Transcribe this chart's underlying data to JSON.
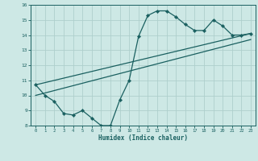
{
  "bg_color": "#cde8e5",
  "grid_color": "#aecfcc",
  "line_color": "#1a6060",
  "xlabel": "Humidex (Indice chaleur)",
  "xlim": [
    -0.5,
    23.5
  ],
  "ylim": [
    8,
    16
  ],
  "xticks": [
    0,
    1,
    2,
    3,
    4,
    5,
    6,
    7,
    8,
    9,
    10,
    11,
    12,
    13,
    14,
    15,
    16,
    17,
    18,
    19,
    20,
    21,
    22,
    23
  ],
  "yticks": [
    8,
    9,
    10,
    11,
    12,
    13,
    14,
    15,
    16
  ],
  "curve1_x": [
    0,
    1,
    2,
    3,
    4,
    5,
    6,
    7,
    8,
    9,
    10,
    11,
    12,
    13,
    14,
    15,
    16,
    17,
    18,
    19,
    20,
    21,
    22,
    23
  ],
  "curve1_y": [
    10.7,
    10.0,
    9.6,
    8.8,
    8.7,
    9.0,
    8.5,
    8.0,
    8.0,
    9.7,
    11.0,
    13.9,
    15.3,
    15.6,
    15.6,
    15.2,
    14.7,
    14.3,
    14.3,
    15.0,
    14.6,
    14.0,
    14.0,
    14.1
  ],
  "curve2_x": [
    0,
    23
  ],
  "curve2_y": [
    10.0,
    13.7
  ],
  "curve3_x": [
    0,
    23
  ],
  "curve3_y": [
    10.7,
    14.1
  ]
}
